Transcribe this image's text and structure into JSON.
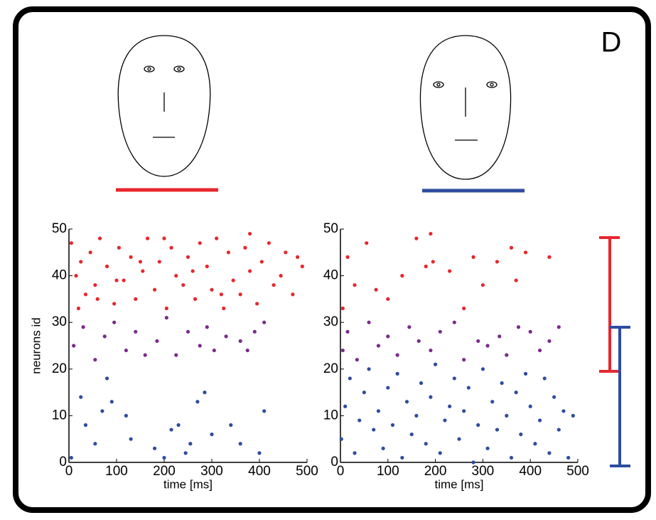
{
  "panel_label": "D",
  "chart_data": [
    {
      "type": "scatter",
      "xlabel": "time [ms]",
      "ylabel": "neurons id",
      "xlim": [
        0,
        500
      ],
      "ylim": [
        0,
        50
      ],
      "xticks": [
        0,
        100,
        200,
        300,
        400,
        500
      ],
      "yticks": [
        0,
        10,
        20,
        30,
        40,
        50
      ],
      "series": [
        {
          "color": "#e8262d",
          "x": [
            5,
            15,
            25,
            35,
            45,
            55,
            65,
            80,
            95,
            105,
            115,
            130,
            140,
            155,
            165,
            180,
            190,
            205,
            215,
            225,
            240,
            250,
            265,
            275,
            290,
            300,
            310,
            325,
            335,
            345,
            360,
            370,
            380,
            395,
            405,
            420,
            430,
            445,
            455,
            470,
            480,
            490,
            20,
            60,
            100,
            150,
            200,
            260,
            320,
            380
          ],
          "values": [
            47,
            40,
            43,
            36,
            45,
            38,
            48,
            42,
            34,
            46,
            39,
            44,
            35,
            41,
            48,
            37,
            43,
            33,
            46,
            40,
            38,
            44,
            35,
            47,
            42,
            37,
            48,
            33,
            45,
            39,
            36,
            46,
            41,
            34,
            43,
            47,
            38,
            40,
            45,
            36,
            44,
            42,
            33,
            35,
            39,
            43,
            48,
            41,
            36,
            49
          ]
        },
        {
          "color": "#7b2a8c",
          "x": [
            10,
            30,
            55,
            75,
            95,
            120,
            140,
            160,
            185,
            205,
            225,
            250,
            275,
            290,
            305,
            330,
            360,
            375,
            390,
            410
          ],
          "values": [
            25,
            29,
            22,
            27,
            30,
            24,
            28,
            23,
            26,
            31,
            23,
            28,
            25,
            29,
            24,
            27,
            26,
            24,
            28,
            30
          ]
        },
        {
          "color": "#2e4da0",
          "x": [
            5,
            25,
            35,
            55,
            70,
            80,
            90,
            120,
            130,
            180,
            200,
            215,
            230,
            245,
            255,
            270,
            285,
            300,
            340,
            360,
            400,
            410
          ],
          "values": [
            1,
            14,
            8,
            4,
            11,
            18,
            13,
            10,
            5,
            3,
            1,
            7,
            8,
            2,
            4,
            13,
            15,
            6,
            8,
            4,
            2,
            11
          ]
        }
      ]
    },
    {
      "type": "scatter",
      "xlabel": "time [ms]",
      "xlim": [
        0,
        500
      ],
      "ylim": [
        0,
        50
      ],
      "xticks": [
        0,
        100,
        200,
        300,
        400,
        500
      ],
      "yticks": [
        0,
        10,
        20,
        30,
        40,
        50
      ],
      "series": [
        {
          "color": "#e8262d",
          "x": [
            5,
            15,
            30,
            55,
            75,
            100,
            130,
            160,
            180,
            190,
            195,
            230,
            260,
            280,
            300,
            330,
            360,
            370,
            390,
            440
          ],
          "values": [
            33,
            44,
            38,
            47,
            37,
            35,
            40,
            48,
            42,
            49,
            43,
            41,
            33,
            44,
            38,
            43,
            46,
            39,
            45,
            44
          ]
        },
        {
          "color": "#7b2a8c",
          "x": [
            5,
            15,
            35,
            60,
            80,
            100,
            120,
            145,
            165,
            190,
            210,
            240,
            260,
            290,
            310,
            335,
            350,
            375,
            400,
            420,
            440,
            460
          ],
          "values": [
            24,
            28,
            22,
            30,
            25,
            27,
            23,
            29,
            26,
            24,
            28,
            30,
            22,
            26,
            25,
            27,
            23,
            29,
            28,
            24,
            26,
            29
          ]
        },
        {
          "color": "#2e4da0",
          "x": [
            2,
            10,
            20,
            30,
            40,
            50,
            60,
            70,
            80,
            90,
            100,
            110,
            120,
            130,
            140,
            150,
            160,
            170,
            180,
            190,
            200,
            210,
            220,
            230,
            240,
            250,
            260,
            270,
            280,
            290,
            300,
            310,
            320,
            330,
            340,
            350,
            360,
            370,
            380,
            390,
            400,
            410,
            420,
            430,
            440,
            450,
            460,
            470,
            480,
            490
          ],
          "values": [
            5,
            12,
            18,
            2,
            9,
            15,
            20,
            7,
            11,
            3,
            16,
            8,
            19,
            1,
            13,
            6,
            10,
            17,
            4,
            14,
            21,
            2,
            9,
            12,
            18,
            5,
            11,
            16,
            0,
            8,
            20,
            3,
            13,
            7,
            17,
            10,
            1,
            15,
            6,
            19,
            12,
            4,
            9,
            18,
            2,
            14,
            7,
            11,
            1,
            10
          ]
        }
      ]
    }
  ]
}
